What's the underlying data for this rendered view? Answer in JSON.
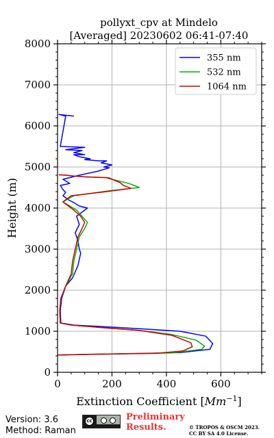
{
  "chart_data": {
    "type": "line",
    "title": "pollyxt_cpv at Mindelo",
    "subtitle": "[Averaged] 20230602 06:41-07:40",
    "xlabel": "Extinction Coefficient [Mm⁻¹]",
    "ylabel": "Height (m)",
    "xlim": [
      0,
      750
    ],
    "ylim": [
      0,
      8000
    ],
    "xticks": [
      0,
      200,
      400,
      600
    ],
    "yticks": [
      0,
      1000,
      2000,
      3000,
      4000,
      5000,
      6000,
      7000,
      8000
    ],
    "grid": true,
    "legend_position": "top-right",
    "series": [
      {
        "name": "355 nm",
        "color": "#0000ff",
        "x": [
          0,
          150,
          450,
          560,
          570,
          545,
          450,
          330,
          200,
          60,
          12,
          10,
          15,
          30,
          55,
          75,
          85,
          80,
          75,
          65,
          80,
          70,
          100,
          110,
          80,
          55,
          40,
          20,
          30,
          20,
          10,
          45,
          20,
          80,
          150,
          190,
          170,
          200,
          160,
          180,
          150,
          100,
          120,
          80,
          60,
          100,
          60,
          90,
          30,
          100,
          10,
          30,
          5,
          60
        ],
        "y": [
          420,
          440,
          480,
          560,
          700,
          880,
          1000,
          1050,
          1100,
          1150,
          1200,
          1500,
          1800,
          2100,
          2300,
          2600,
          2900,
          3000,
          3200,
          3400,
          3600,
          3800,
          3950,
          4000,
          4050,
          4150,
          4200,
          4300,
          4380,
          4450,
          4550,
          4600,
          4700,
          4800,
          4900,
          4980,
          5000,
          5050,
          5100,
          5150,
          5150,
          5180,
          5200,
          5250,
          5300,
          5300,
          5350,
          5400,
          5420,
          5480,
          5500,
          6240,
          6280,
          6240
        ]
      },
      {
        "name": "532 nm",
        "color": "#00b000",
        "x": [
          0,
          150,
          420,
          530,
          540,
          510,
          420,
          300,
          180,
          50,
          10,
          8,
          12,
          30,
          55,
          60,
          70,
          80,
          100,
          110,
          90,
          70,
          20,
          60,
          190,
          300,
          270,
          250,
          200,
          190,
          100,
          60,
          30,
          5
        ],
        "y": [
          420,
          440,
          470,
          560,
          640,
          780,
          920,
          1020,
          1080,
          1150,
          1200,
          1500,
          1800,
          2100,
          2400,
          2700,
          3000,
          3300,
          3500,
          3650,
          3800,
          3950,
          4150,
          4300,
          4420,
          4500,
          4580,
          4620,
          4700,
          4740,
          4760,
          4780,
          4800,
          4810
        ]
      },
      {
        "name": "1064 nm",
        "color": "#cc0000",
        "x": [
          0,
          120,
          360,
          460,
          495,
          490,
          420,
          300,
          180,
          50,
          10,
          8,
          12,
          30,
          50,
          55,
          65,
          75,
          90,
          100,
          85,
          60,
          20,
          50,
          180,
          270,
          240,
          230,
          200,
          180,
          100,
          60,
          30,
          5
        ],
        "y": [
          420,
          440,
          460,
          520,
          620,
          720,
          900,
          1020,
          1080,
          1150,
          1200,
          1500,
          1800,
          2100,
          2400,
          2700,
          3000,
          3300,
          3500,
          3650,
          3800,
          3950,
          4150,
          4300,
          4400,
          4480,
          4560,
          4620,
          4700,
          4740,
          4760,
          4780,
          4800,
          4810
        ]
      }
    ]
  },
  "footer": {
    "version": "Version: 3.6",
    "method": "Method: Raman",
    "preliminary_line1": "Preliminary",
    "preliminary_line2": "Results.",
    "preliminary_color": "#ee3333",
    "rights_line1": "© TROPOS & OSCM 2023.",
    "rights_line2": "CC BY SA 4.0 License.",
    "cc_badge_text": "cc"
  }
}
